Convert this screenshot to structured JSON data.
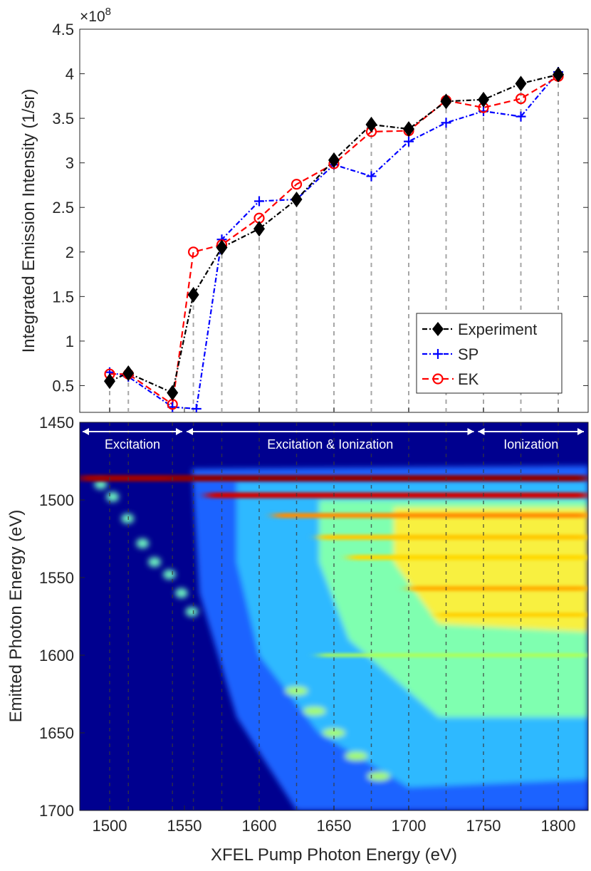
{
  "chart_data": [
    {
      "type": "line",
      "panel": "top",
      "ylabel": "Integrated Emission Intensity (1/sr)",
      "exponent_label": "×10",
      "exponent_power": "8",
      "xlim": [
        1480,
        1820
      ],
      "ylim": [
        0.2,
        4.5
      ],
      "yticks": [
        0.5,
        1,
        1.5,
        2,
        2.5,
        3,
        3.5,
        4,
        4.5
      ],
      "ytick_labels": [
        "0.5",
        "1",
        "1.5",
        "2",
        "2.5",
        "3",
        "3.5",
        "4",
        "4.5"
      ],
      "vertical_guides_x": [
        1500,
        1512.5,
        1542,
        1556,
        1575,
        1600,
        1625,
        1650,
        1675,
        1700,
        1725,
        1750,
        1775,
        1800
      ],
      "legend": {
        "position": "bottom-right",
        "entries": [
          "Experiment",
          "SP",
          "EK"
        ]
      },
      "series": [
        {
          "name": "Experiment",
          "color": "#000000",
          "marker": "diamond",
          "dash": "dashdot",
          "x": [
            1500,
            1512.5,
            1542,
            1556,
            1575,
            1600,
            1625,
            1650,
            1675,
            1700,
            1725,
            1750,
            1775,
            1800
          ],
          "y": [
            0.55,
            0.64,
            0.42,
            1.52,
            2.05,
            2.26,
            2.59,
            3.03,
            3.43,
            3.38,
            3.69,
            3.71,
            3.89,
            3.99
          ]
        },
        {
          "name": "SP",
          "color": "#0000ff",
          "marker": "plus",
          "dash": "dashdot",
          "x": [
            1500,
            1512.5,
            1542,
            1558,
            1575,
            1600,
            1625,
            1650,
            1675,
            1700,
            1725,
            1750,
            1775,
            1800
          ],
          "y": [
            0.65,
            0.6,
            0.26,
            0.24,
            2.14,
            2.57,
            2.59,
            2.98,
            2.85,
            3.24,
            3.45,
            3.58,
            3.52,
            4.02
          ]
        },
        {
          "name": "EK",
          "color": "#ff0000",
          "marker": "circle",
          "dash": "dashed",
          "x": [
            1500,
            1512.5,
            1542,
            1556,
            1575,
            1600,
            1625,
            1650,
            1675,
            1700,
            1725,
            1750,
            1775,
            1800
          ],
          "y": [
            0.63,
            0.63,
            0.29,
            2.0,
            2.08,
            2.38,
            2.76,
            2.99,
            3.35,
            3.36,
            3.7,
            3.62,
            3.72,
            3.97
          ]
        }
      ]
    },
    {
      "type": "heatmap",
      "panel": "bottom",
      "xlabel": "XFEL Pump Photon Energy (eV)",
      "ylabel": "Emitted Photon Energy (eV)",
      "xlim": [
        1480,
        1820
      ],
      "ylim": [
        1450,
        1700
      ],
      "xticks": [
        1500,
        1550,
        1600,
        1650,
        1700,
        1750,
        1800
      ],
      "xtick_labels": [
        "1500",
        "1550",
        "1600",
        "1650",
        "1700",
        "1750",
        "1800"
      ],
      "yticks": [
        1450,
        1500,
        1550,
        1600,
        1650,
        1700
      ],
      "ytick_labels": [
        "1450",
        "1500",
        "1550",
        "1600",
        "1650",
        "1700"
      ],
      "regions": [
        {
          "label": "Excitation",
          "x_start": 1480,
          "x_end": 1550
        },
        {
          "label": "Excitation & Ionization",
          "x_start": 1550,
          "x_end": 1745
        },
        {
          "label": "Ionization",
          "x_start": 1745,
          "x_end": 1820
        }
      ],
      "emission_lines_eV": [
        1486,
        1497,
        1510,
        1524,
        1537,
        1557,
        1574,
        1600,
        1625,
        1650,
        1675
      ],
      "colormap": "jet"
    }
  ]
}
